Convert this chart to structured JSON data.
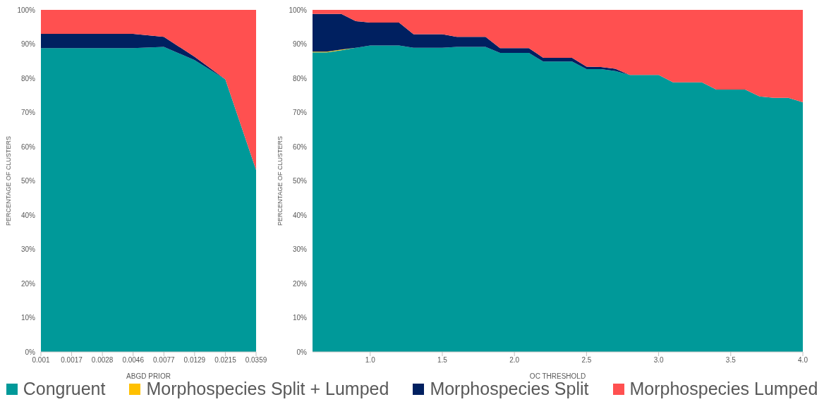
{
  "chart_data": [
    {
      "type": "area",
      "stacked": true,
      "xlabel": "ABGD PRIOR",
      "ylabel": "PERCENTAGE OF CLUSTERS",
      "categories": [
        "0.001",
        "0.0017",
        "0.0028",
        "0.0046",
        "0.0077",
        "0.0129",
        "0.0215",
        "0.0359"
      ],
      "ylim": [
        0,
        100
      ],
      "yticks": [
        {
          "value": 0,
          "label": "0%"
        },
        {
          "value": 10,
          "label": "10%"
        },
        {
          "value": 20,
          "label": "20%"
        },
        {
          "value": 30,
          "label": "30%"
        },
        {
          "value": 40,
          "label": "40%"
        },
        {
          "value": 50,
          "label": "50%"
        },
        {
          "value": 60,
          "label": "60%"
        },
        {
          "value": 70,
          "label": "70%"
        },
        {
          "value": 80,
          "label": "80%"
        },
        {
          "value": 90,
          "label": "90%"
        },
        {
          "value": 100,
          "label": "100%"
        }
      ],
      "grid": false,
      "legend": false,
      "series": [
        {
          "color": "#009999",
          "values": [
            88.8,
            88.8,
            88.8,
            88.8,
            89.2,
            85.3,
            79.7,
            53.2
          ]
        },
        {
          "color": "#002060",
          "values": [
            4.2,
            4.2,
            4.2,
            4.2,
            2.9,
            1.0,
            0,
            0
          ]
        },
        {
          "color": "#ff5050",
          "values": [
            7.0,
            7.0,
            7.0,
            7.0,
            7.9,
            13.7,
            20.3,
            46.8
          ]
        }
      ]
    },
    {
      "type": "area",
      "stacked": true,
      "xlabel": "OC THRESHOLD",
      "ylabel": "PERCENTAGE OF CLUSTERS",
      "x": [
        0.6,
        0.7,
        0.8,
        0.9,
        1.0,
        1.1,
        1.2,
        1.3,
        1.4,
        1.5,
        1.6,
        1.7,
        1.8,
        1.9,
        2.0,
        2.1,
        2.2,
        2.3,
        2.4,
        2.5,
        2.6,
        2.7,
        2.8,
        2.9,
        3.0,
        3.1,
        3.2,
        3.3,
        3.4,
        3.5,
        3.6,
        3.7,
        3.8,
        3.9,
        4.0
      ],
      "xlim": [
        0.6,
        4.0
      ],
      "xticks": [
        {
          "value": 1,
          "label": "1.0"
        },
        {
          "value": 1.5,
          "label": "1.5"
        },
        {
          "value": 2,
          "label": "2.0"
        },
        {
          "value": 2.5,
          "label": "2.5"
        },
        {
          "value": 3,
          "label": "3.0"
        },
        {
          "value": 3.5,
          "label": "3.5"
        },
        {
          "value": 4,
          "label": "4.0"
        }
      ],
      "ylim": [
        0,
        100
      ],
      "yticks": [
        {
          "value": 0,
          "label": "0%"
        },
        {
          "value": 10,
          "label": "10%"
        },
        {
          "value": 20,
          "label": "20%"
        },
        {
          "value": 30,
          "label": "30%"
        },
        {
          "value": 40,
          "label": "40%"
        },
        {
          "value": 50,
          "label": "50%"
        },
        {
          "value": 60,
          "label": "60%"
        },
        {
          "value": 70,
          "label": "70%"
        },
        {
          "value": 80,
          "label": "80%"
        },
        {
          "value": 90,
          "label": "90%"
        },
        {
          "value": 100,
          "label": "100%"
        }
      ],
      "grid": false,
      "legend": "bottom",
      "series": [
        {
          "name": "Congruent",
          "color": "#009999",
          "values": [
            87.6,
            87.6,
            88.2,
            88.9,
            89.6,
            89.6,
            89.6,
            88.9,
            88.9,
            88.9,
            89.2,
            89.2,
            89.2,
            87.4,
            87.4,
            87.4,
            84.9,
            84.9,
            84.9,
            82.7,
            82.7,
            82.1,
            81.0,
            81.0,
            81.0,
            78.8,
            78.8,
            78.8,
            76.7,
            76.7,
            76.7,
            74.7,
            74.3,
            74.3,
            73.0
          ]
        },
        {
          "name": "Morphospecies Split + Lumped",
          "color": "#ffc000",
          "values": [
            0.2,
            0.2,
            0.2,
            0,
            0,
            0,
            0,
            0,
            0,
            0,
            0,
            0,
            0,
            0,
            0,
            0,
            0,
            0,
            0,
            0,
            0,
            0,
            0,
            0,
            0,
            0,
            0,
            0,
            0,
            0,
            0,
            0,
            0,
            0,
            0
          ]
        },
        {
          "name": "Morphospecies Split",
          "color": "#002060",
          "values": [
            11.0,
            11.0,
            10.4,
            7.8,
            6.7,
            6.7,
            6.7,
            4.0,
            4.0,
            4.0,
            2.9,
            2.9,
            2.9,
            1.4,
            1.4,
            1.4,
            1.1,
            1.1,
            1.1,
            0.7,
            0.6,
            0.7,
            0,
            0,
            0,
            0,
            0,
            0,
            0,
            0,
            0,
            0,
            0,
            0,
            0
          ]
        },
        {
          "name": "Morphospecies Lumped",
          "color": "#ff5050",
          "values": [
            1.2,
            1.2,
            1.2,
            3.3,
            3.7,
            3.7,
            3.7,
            7.1,
            7.1,
            7.1,
            7.9,
            7.9,
            7.9,
            11.2,
            11.2,
            11.2,
            14.0,
            14.0,
            14.0,
            16.6,
            16.7,
            17.2,
            19.0,
            19.0,
            19.0,
            21.2,
            21.2,
            21.2,
            23.3,
            23.3,
            23.3,
            25.3,
            25.7,
            25.7,
            27.0
          ]
        }
      ]
    }
  ]
}
